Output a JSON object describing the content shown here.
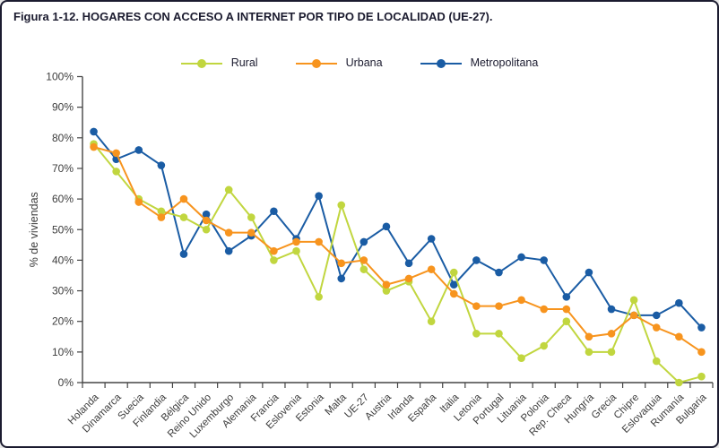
{
  "figure": {
    "title": "Figura 1-12. HOGARES CON ACCESO A INTERNET POR TIPO DE LOCALIDAD (UE-27)."
  },
  "legend": {
    "items": [
      {
        "label": "Rural",
        "color": "#c1d63f"
      },
      {
        "label": "Urbana",
        "color": "#f7941e"
      },
      {
        "label": "Metropolitana",
        "color": "#1a5ca4"
      }
    ]
  },
  "chart_data": {
    "type": "line",
    "title": "Figura 1-12. HOGARES CON ACCESO A INTERNET POR TIPO DE LOCALIDAD (UE-27).",
    "xlabel": "",
    "ylabel": "% de viviendas",
    "ylim": [
      0,
      100
    ],
    "ytick_step": 10,
    "ytick_suffix": "%",
    "grid": false,
    "legend_position": "top",
    "marker": "circle",
    "categories": [
      "Holanda",
      "Dinamarca",
      "Suecia",
      "Finlandia",
      "Bélgica",
      "Reino Unido",
      "Luxemburgo",
      "Alemania",
      "Francia",
      "Eslovenia",
      "Estonia",
      "Malta",
      "UE-27",
      "Austria",
      "Irlanda",
      "España",
      "Italia",
      "Letonia",
      "Portugal",
      "Lituania",
      "Polonia",
      "Rep. Checa",
      "Hungría",
      "Grecia",
      "Chipre",
      "Eslovaquia",
      "Rumanía",
      "Bulgaria"
    ],
    "series": [
      {
        "name": "Rural",
        "color": "#c1d63f",
        "values": [
          78,
          69,
          60,
          56,
          54,
          50,
          63,
          54,
          40,
          43,
          28,
          58,
          37,
          30,
          33,
          20,
          36,
          16,
          16,
          8,
          12,
          20,
          10,
          10,
          27,
          7,
          0,
          2
        ]
      },
      {
        "name": "Urbana",
        "color": "#f7941e",
        "values": [
          77,
          75,
          59,
          54,
          60,
          53,
          49,
          49,
          43,
          46,
          46,
          39,
          40,
          32,
          34,
          37,
          29,
          25,
          25,
          27,
          24,
          24,
          15,
          16,
          22,
          18,
          15,
          10
        ]
      },
      {
        "name": "Metropolitana",
        "color": "#1a5ca4",
        "values": [
          82,
          73,
          76,
          71,
          42,
          55,
          43,
          48,
          56,
          47,
          61,
          34,
          46,
          51,
          39,
          47,
          32,
          40,
          36,
          41,
          40,
          28,
          36,
          24,
          22,
          22,
          26,
          18
        ]
      }
    ]
  }
}
